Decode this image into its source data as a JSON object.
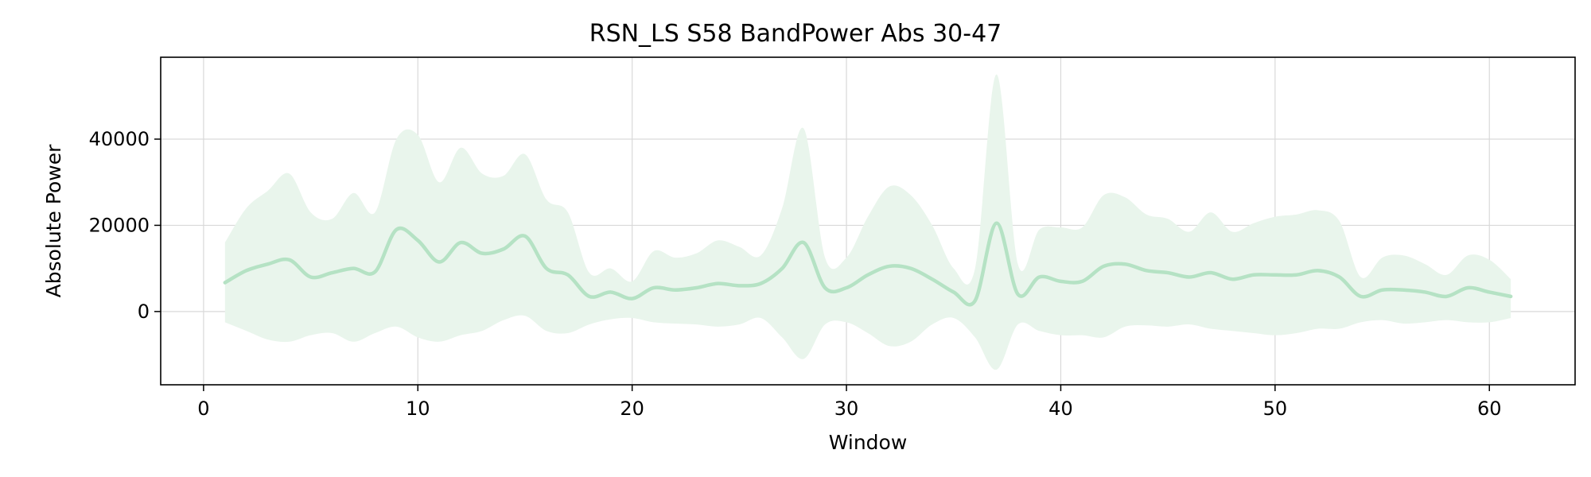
{
  "chart_data": {
    "type": "line",
    "title": "RSN_LS S58 BandPower Abs 30-47",
    "xlabel": "Window",
    "ylabel": "Absolute Power",
    "xlim": [
      -2,
      64
    ],
    "ylim": [
      -17000,
      59000
    ],
    "x_ticks": [
      0,
      10,
      20,
      30,
      40,
      50,
      60
    ],
    "y_ticks": [
      0,
      20000,
      40000
    ],
    "grid": true,
    "colors": {
      "line": "#b5e2c4",
      "band": "#e9f5ec"
    },
    "series": [
      {
        "x": [
          1,
          2,
          3,
          4,
          5,
          6,
          7,
          8,
          9,
          10,
          11,
          12,
          13,
          14,
          15,
          16,
          17,
          18,
          19,
          20,
          21,
          22,
          23,
          24,
          25,
          26,
          27,
          28,
          29,
          30,
          31,
          32,
          33,
          34,
          35,
          36,
          37,
          38,
          39,
          40,
          41,
          42,
          43,
          44,
          45,
          46,
          47,
          48,
          49,
          50,
          51,
          52,
          53,
          54,
          55,
          56,
          57,
          58,
          59,
          60,
          61
        ],
        "mean": [
          6700,
          9500,
          11000,
          12000,
          8000,
          9000,
          10000,
          9200,
          19000,
          16500,
          11500,
          16000,
          13500,
          14500,
          17500,
          10000,
          8500,
          3500,
          4500,
          3000,
          5500,
          5000,
          5500,
          6500,
          6000,
          6500,
          10000,
          16000,
          5500,
          5500,
          8500,
          10500,
          10000,
          7500,
          4500,
          2500,
          20500,
          4000,
          8000,
          7000,
          7000,
          10500,
          11000,
          9500,
          9000,
          8000,
          9000,
          7500,
          8500,
          8500,
          8500,
          9500,
          8000,
          3500,
          5000,
          5000,
          4500,
          3500,
          5500,
          4500,
          3500
        ],
        "upper": [
          16000,
          24000,
          28000,
          32000,
          23000,
          21500,
          27500,
          23000,
          40000,
          41000,
          30000,
          38000,
          32000,
          31500,
          36500,
          26000,
          23000,
          9000,
          10000,
          7000,
          14000,
          12500,
          13500,
          16500,
          15000,
          13000,
          24000,
          42500,
          12500,
          12500,
          22000,
          29000,
          27000,
          20000,
          10000,
          10000,
          55000,
          11000,
          19000,
          19500,
          19500,
          27000,
          26500,
          22500,
          21500,
          18500,
          23000,
          18500,
          20500,
          22000,
          22500,
          23500,
          21000,
          8000,
          12500,
          13000,
          11000,
          8500,
          13000,
          12000,
          7500
        ],
        "lower": [
          -2500,
          -4500,
          -6500,
          -7000,
          -5500,
          -5000,
          -7000,
          -5000,
          -3500,
          -6000,
          -7000,
          -5500,
          -4500,
          -2000,
          -1000,
          -4500,
          -5000,
          -3000,
          -1800,
          -1500,
          -2500,
          -2800,
          -3000,
          -3500,
          -3000,
          -1500,
          -6000,
          -11000,
          -3000,
          -2500,
          -5000,
          -8000,
          -7000,
          -3000,
          -1500,
          -6000,
          -13500,
          -3000,
          -4500,
          -5500,
          -5500,
          -6000,
          -3500,
          -3200,
          -3500,
          -3000,
          -4000,
          -4500,
          -5000,
          -5500,
          -5000,
          -4000,
          -4000,
          -2500,
          -2000,
          -2800,
          -2500,
          -2000,
          -2500,
          -2500,
          -1500
        ]
      }
    ]
  }
}
